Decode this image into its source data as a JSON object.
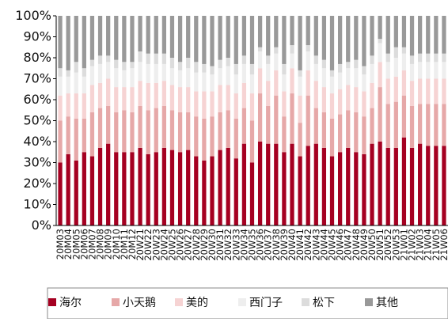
{
  "chart_data": {
    "type": "bar",
    "stacked": true,
    "percent": true,
    "categories": [
      "20M03",
      "20M04",
      "20M05",
      "20M06",
      "20M07",
      "20M08",
      "20M09",
      "20M10",
      "20M11",
      "20M12",
      "20W21",
      "20W22",
      "20W23",
      "20W24",
      "20W25",
      "20W26",
      "20W27",
      "20W28",
      "20W29",
      "20W30",
      "20W31",
      "20W32",
      "20W33",
      "20W34",
      "20W35",
      "20W36",
      "20W37",
      "20W38",
      "20W39",
      "20W40",
      "20W41",
      "20W42",
      "20W43",
      "20W44",
      "20W45",
      "20W46",
      "20W47",
      "20W48",
      "20W49",
      "20W50",
      "20W51",
      "20W52",
      "20W53",
      "21W01",
      "21W02",
      "21W03",
      "21W04",
      "21W05",
      "21W06"
    ],
    "series": [
      {
        "name": "海尔",
        "color": "#a50021",
        "values": [
          30,
          34,
          31,
          35,
          33,
          37,
          39,
          35,
          35,
          35,
          37,
          34,
          35,
          37,
          36,
          35,
          36,
          33,
          31,
          33,
          36,
          37,
          32,
          39,
          30,
          40,
          39,
          39,
          35,
          39,
          33,
          38,
          39,
          37,
          33,
          35,
          37,
          35,
          34,
          39,
          40,
          37,
          37,
          42,
          37,
          39,
          38,
          38,
          38
        ]
      },
      {
        "name": "小天鹅",
        "color": "#e6a8a8",
        "values": [
          20,
          18,
          20,
          16,
          21,
          19,
          18,
          19,
          20,
          19,
          20,
          21,
          21,
          20,
          19,
          19,
          18,
          19,
          20,
          19,
          18,
          18,
          19,
          17,
          20,
          23,
          18,
          23,
          17,
          24,
          16,
          24,
          17,
          17,
          18,
          18,
          18,
          19,
          18,
          17,
          26,
          21,
          22,
          20,
          20,
          19,
          20,
          20,
          20
        ]
      },
      {
        "name": "美的",
        "color": "#f6d3d3",
        "values": [
          12,
          11,
          12,
          12,
          13,
          12,
          13,
          12,
          11,
          12,
          12,
          13,
          12,
          12,
          12,
          12,
          12,
          12,
          13,
          12,
          13,
          12,
          12,
          12,
          13,
          12,
          12,
          12,
          12,
          12,
          13,
          12,
          13,
          12,
          12,
          12,
          12,
          12,
          12,
          12,
          12,
          12,
          12,
          12,
          12,
          12,
          12,
          12,
          12
        ]
      },
      {
        "name": "西门子",
        "color": "#eeeeee",
        "values": [
          9,
          8,
          10,
          8,
          9,
          9,
          8,
          9,
          8,
          9,
          9,
          9,
          9,
          8,
          8,
          8,
          9,
          9,
          9,
          8,
          8,
          9,
          9,
          9,
          9,
          8,
          8,
          8,
          8,
          7,
          9,
          9,
          8,
          9,
          8,
          8,
          8,
          9,
          8,
          9,
          9,
          8,
          9,
          8,
          8,
          8,
          8,
          8,
          8
        ]
      },
      {
        "name": "松下",
        "color": "#dcdcdc",
        "values": [
          4,
          3,
          5,
          4,
          3,
          4,
          3,
          4,
          4,
          3,
          5,
          5,
          5,
          5,
          5,
          4,
          5,
          5,
          4,
          4,
          4,
          4,
          5,
          4,
          5,
          2,
          4,
          3,
          5,
          4,
          3,
          3,
          4,
          4,
          3,
          4,
          3,
          4,
          4,
          4,
          2,
          4,
          5,
          3,
          4,
          4,
          4,
          4,
          4
        ]
      },
      {
        "name": "其他",
        "color": "#999999",
        "values": [
          25,
          26,
          22,
          25,
          21,
          19,
          19,
          21,
          22,
          22,
          17,
          18,
          18,
          18,
          20,
          22,
          20,
          22,
          23,
          24,
          21,
          20,
          23,
          19,
          23,
          15,
          19,
          15,
          23,
          14,
          26,
          14,
          19,
          21,
          26,
          23,
          22,
          21,
          24,
          19,
          11,
          18,
          15,
          15,
          19,
          18,
          18,
          18,
          18
        ]
      }
    ],
    "ylim": [
      0,
      100
    ],
    "yticks": [
      "0%",
      "10%",
      "20%",
      "30%",
      "40%",
      "50%",
      "60%",
      "70%",
      "80%",
      "90%",
      "100%"
    ],
    "legend_position": "bottom"
  }
}
